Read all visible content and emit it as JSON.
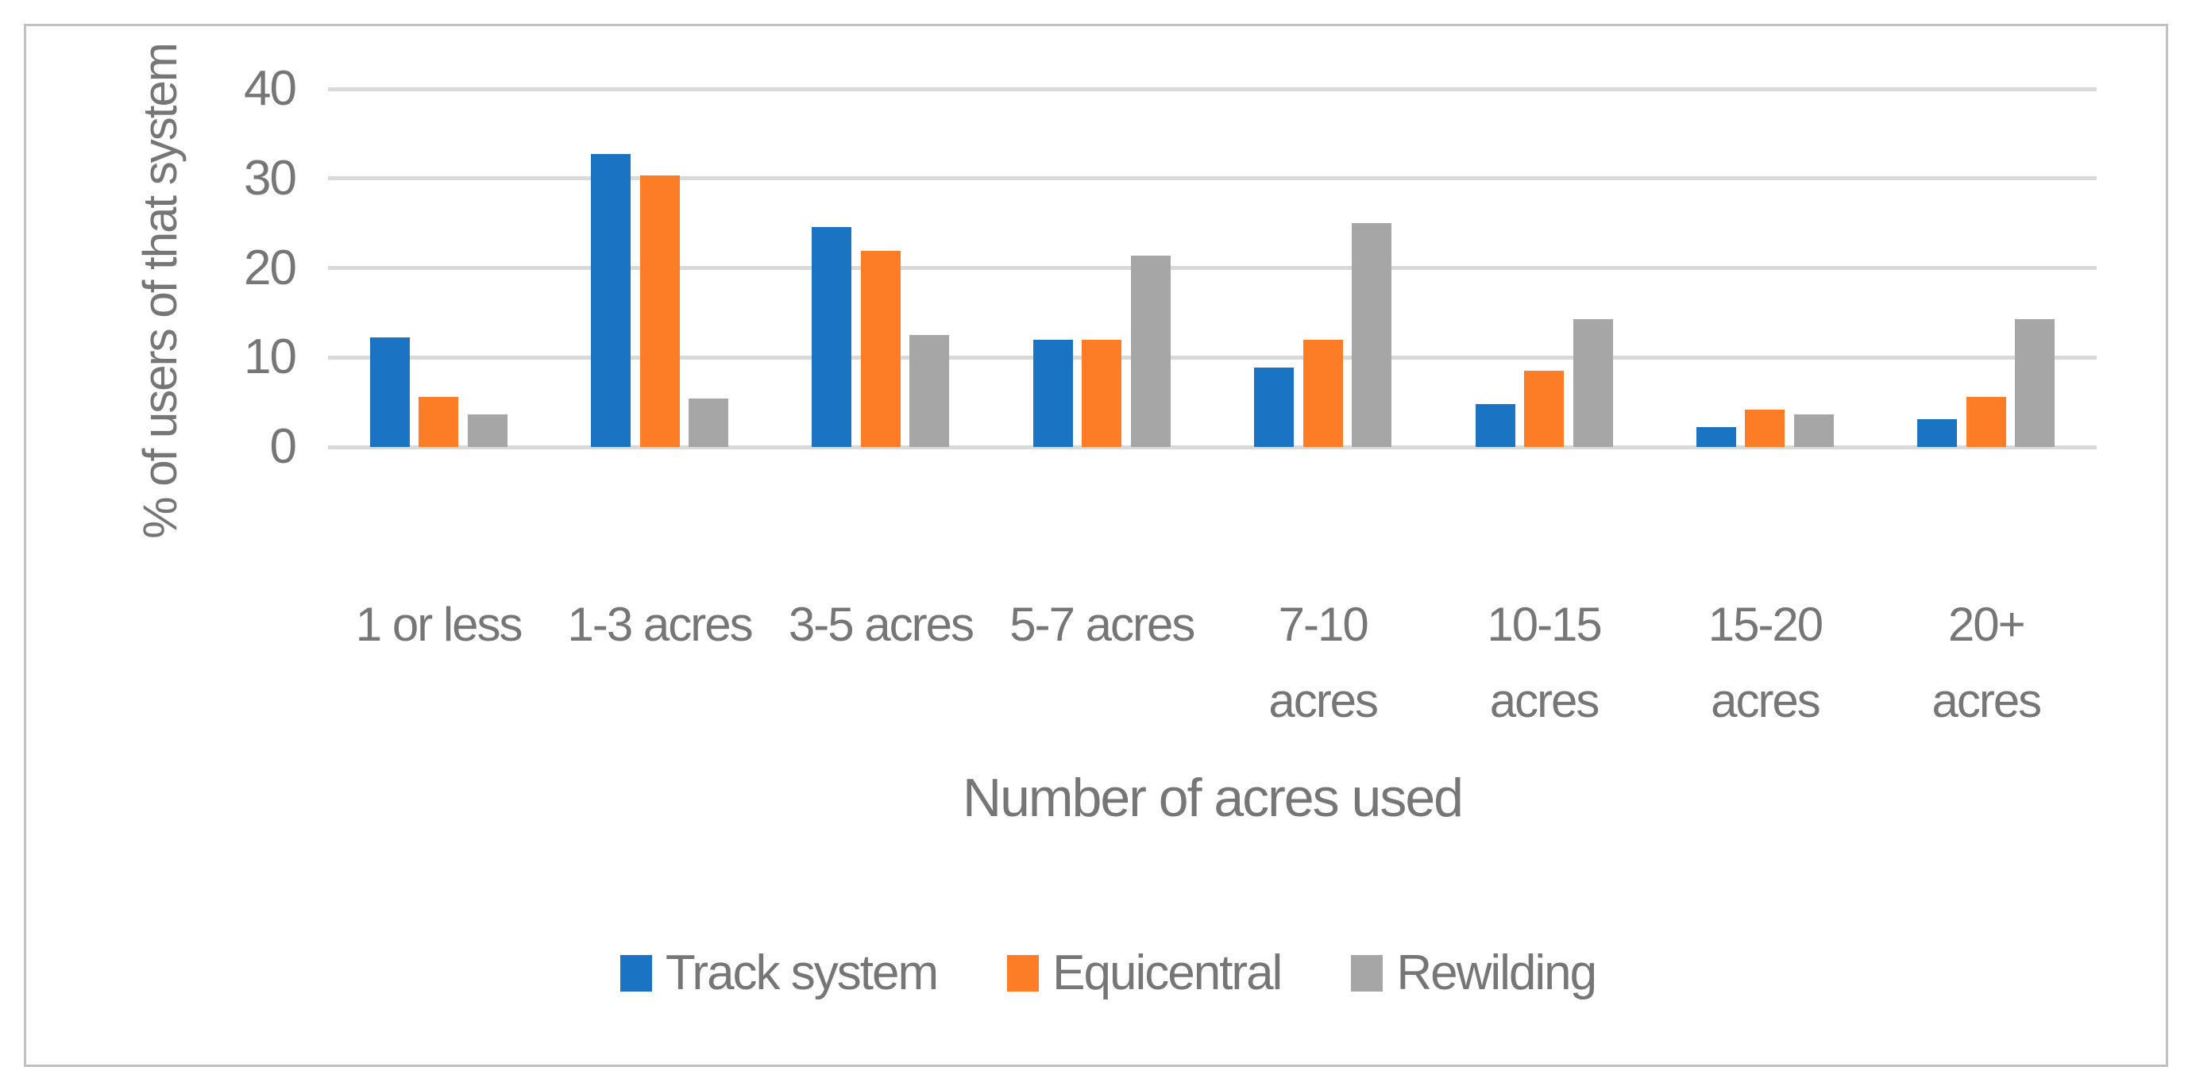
{
  "chart_data": {
    "type": "bar",
    "title": "",
    "categories": [
      "1 or less",
      "1-3 acres",
      "3-5 acres",
      "5-7 acres",
      "7-10 acres",
      "10-15 acres",
      "15-20 acres",
      "20+ acres"
    ],
    "category_label_lines": [
      [
        "1 or less"
      ],
      [
        "1-3 acres"
      ],
      [
        "3-5 acres"
      ],
      [
        "5-7 acres"
      ],
      [
        "7-10",
        "acres"
      ],
      [
        "10-15",
        "acres"
      ],
      [
        "15-20",
        "acres"
      ],
      [
        "20+",
        "acres"
      ]
    ],
    "series": [
      {
        "name": "Track system",
        "color": "#1B73C4",
        "values": [
          12.2,
          32.7,
          24.6,
          12.0,
          8.9,
          4.8,
          2.2,
          3.1
        ]
      },
      {
        "name": "Equicentral",
        "color": "#FC7D26",
        "values": [
          5.6,
          30.3,
          21.9,
          12.0,
          12.0,
          8.5,
          4.2,
          5.6
        ]
      },
      {
        "name": "Rewilding",
        "color": "#A6A6A6",
        "values": [
          3.6,
          5.4,
          12.5,
          21.4,
          25.0,
          14.3,
          3.6,
          14.3
        ]
      }
    ],
    "xlabel": "Number of acres used",
    "ylabel": "% of users of that system",
    "ylim": [
      0,
      40
    ],
    "yticks": [
      0,
      10,
      20,
      30,
      40
    ],
    "grid": true,
    "legend_position": "bottom"
  },
  "colors": {
    "grid": "#D9D9D9",
    "text": "#767676",
    "chart_border": "#C0C0C0",
    "background": "#FFFFFF"
  }
}
